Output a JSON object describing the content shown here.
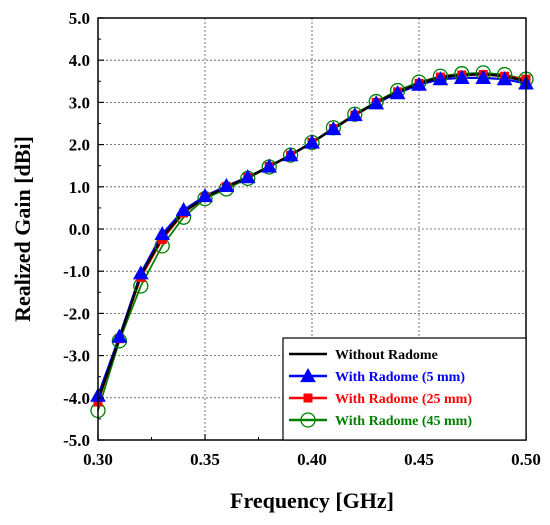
{
  "chart_data": {
    "type": "line",
    "xlabel": "Frequency [GHz]",
    "ylabel": "Realized Gain [dBi]",
    "xlim": [
      0.3,
      0.5
    ],
    "ylim": [
      -5.0,
      5.0
    ],
    "x_ticks": [
      "0.30",
      "0.35",
      "0.40",
      "0.45",
      "0.50"
    ],
    "y_ticks": [
      "-5.0",
      "-4.0",
      "-3.0",
      "-2.0",
      "-1.0",
      "0.0",
      "1.0",
      "2.0",
      "3.0",
      "4.0",
      "5.0"
    ],
    "grid": true,
    "legend_position": "bottom-right",
    "x": [
      0.3,
      0.31,
      0.32,
      0.33,
      0.34,
      0.35,
      0.36,
      0.37,
      0.38,
      0.39,
      0.4,
      0.41,
      0.42,
      0.43,
      0.44,
      0.45,
      0.46,
      0.47,
      0.48,
      0.49,
      0.5
    ],
    "series": [
      {
        "name": "Without Radome",
        "color": "#000000",
        "marker": "none",
        "values": [
          -4.05,
          -2.6,
          -1.1,
          -0.2,
          0.4,
          0.75,
          1.0,
          1.22,
          1.48,
          1.75,
          2.05,
          2.38,
          2.7,
          3.0,
          3.25,
          3.45,
          3.6,
          3.65,
          3.67,
          3.62,
          3.5
        ]
      },
      {
        "name": "With Radome (5 mm)",
        "color": "#0000ff",
        "marker": "triangle",
        "values": [
          -3.95,
          -2.55,
          -1.05,
          -0.12,
          0.45,
          0.78,
          1.02,
          1.23,
          1.48,
          1.75,
          2.05,
          2.37,
          2.7,
          2.98,
          3.22,
          3.42,
          3.55,
          3.58,
          3.58,
          3.55,
          3.45
        ]
      },
      {
        "name": "With Radome (25 mm)",
        "color": "#ff0000",
        "marker": "square",
        "values": [
          -4.1,
          -2.6,
          -1.15,
          -0.25,
          0.38,
          0.75,
          1.0,
          1.22,
          1.48,
          1.75,
          2.05,
          2.38,
          2.7,
          3.0,
          3.25,
          3.45,
          3.6,
          3.65,
          3.66,
          3.62,
          3.55
        ]
      },
      {
        "name": "With Radome (45 mm)",
        "color": "#008000",
        "marker": "circle",
        "values": [
          -4.3,
          -2.65,
          -1.35,
          -0.4,
          0.28,
          0.72,
          0.95,
          1.2,
          1.47,
          1.75,
          2.05,
          2.4,
          2.72,
          3.02,
          3.28,
          3.48,
          3.62,
          3.68,
          3.7,
          3.66,
          3.55
        ]
      }
    ]
  }
}
